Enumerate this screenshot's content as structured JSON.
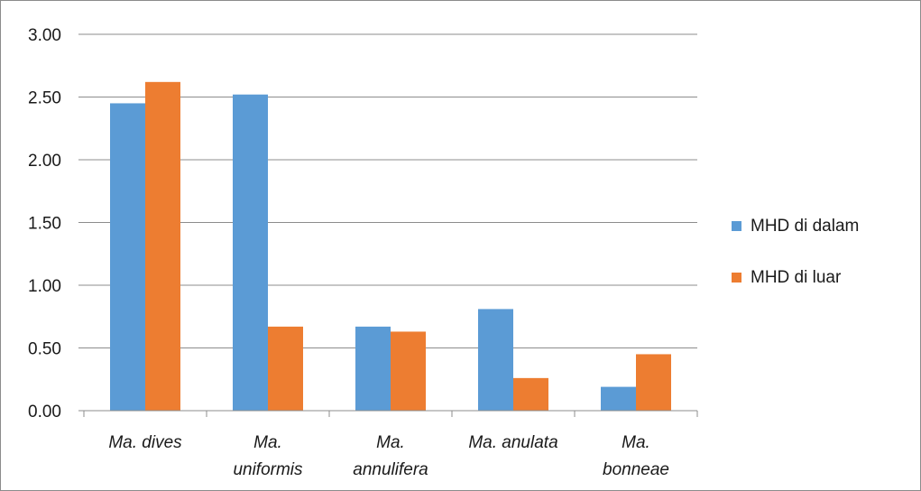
{
  "chart_data": {
    "type": "bar",
    "title": "",
    "xlabel": "",
    "ylabel": "",
    "ylim": [
      0,
      3.0
    ],
    "yticks": [
      "0.00",
      "0.50",
      "1.00",
      "1.50",
      "2.00",
      "2.50",
      "3.00"
    ],
    "grid": true,
    "legend_position": "right",
    "categories": [
      [
        "Ma. dives"
      ],
      [
        "Ma.",
        "uniformis"
      ],
      [
        "Ma.",
        "annulifera"
      ],
      [
        "Ma. anulata"
      ],
      [
        "Ma.",
        "bonneae"
      ]
    ],
    "series": [
      {
        "name": "MHD di dalam",
        "color": "#5b9bd5",
        "values": [
          2.45,
          2.52,
          0.67,
          0.81,
          0.19
        ]
      },
      {
        "name": "MHD di luar",
        "color": "#ed7d31",
        "values": [
          2.62,
          0.67,
          0.63,
          0.26,
          0.45
        ]
      }
    ]
  }
}
